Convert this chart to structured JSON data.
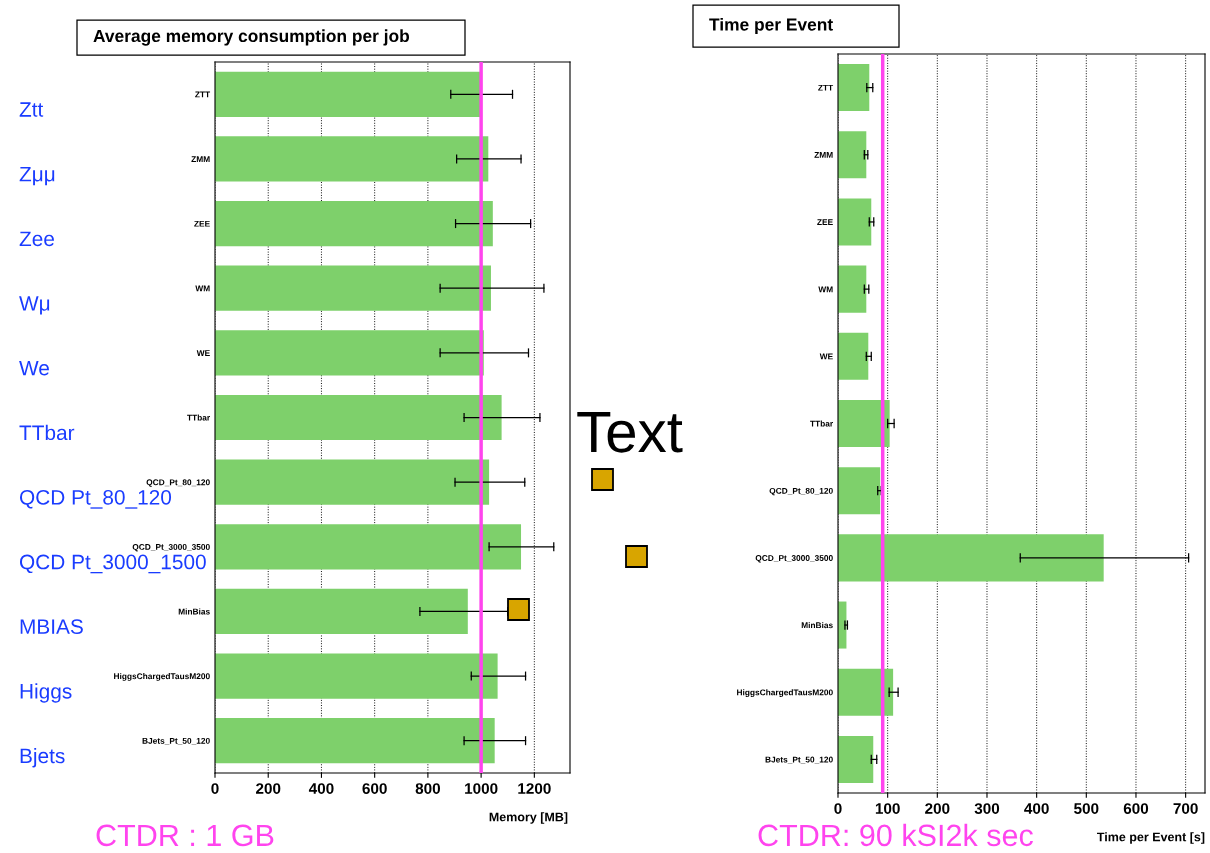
{
  "chart_data": [
    {
      "type": "bar",
      "orientation": "horizontal",
      "title": "Average memory consumption per job",
      "xlabel": "Memory [MB]",
      "categories": [
        "ZTT",
        "ZMM",
        "ZEE",
        "WM",
        "WE",
        "TTbar",
        "QCD_Pt_80_120",
        "QCD_Pt_3000_3500",
        "MinBias",
        "HiggsChargedTausM200",
        "BJets_Pt_50_120"
      ],
      "values": [
        999,
        1027,
        1044,
        1037,
        1010,
        1077,
        1030,
        1150,
        950,
        1062,
        1051
      ],
      "errors": [
        [
          886,
          1118
        ],
        [
          908,
          1150
        ],
        [
          904,
          1186
        ],
        [
          846,
          1236
        ],
        [
          846,
          1178
        ],
        [
          936,
          1221
        ],
        [
          902,
          1164
        ],
        [
          1030,
          1273
        ],
        [
          770,
          1100
        ],
        [
          963,
          1167
        ],
        [
          936,
          1167
        ]
      ],
      "color": "#7ed06b",
      "xlim": [
        0,
        1334
      ],
      "xticks": [
        0,
        200,
        400,
        600,
        800,
        1000,
        1200
      ],
      "grid": "x",
      "ref_lines": [
        {
          "axis": "x",
          "value": 1000,
          "color": "#ff44ee"
        }
      ],
      "annotations": [
        "Ztt",
        "Zμμ",
        "Zee",
        "Wμ",
        "We",
        "TTbar",
        "QCD Pt_80_120",
        "QCD Pt_3000_1500",
        "MBIAS",
        "Higgs",
        "Bjets",
        "Text",
        "CTDR : 1 GB"
      ]
    },
    {
      "type": "bar",
      "orientation": "horizontal",
      "title": "Time per Event",
      "xlabel": "Time per Event [s]",
      "categories": [
        "ZTT",
        "ZMM",
        "ZEE",
        "WM",
        "WE",
        "TTbar",
        "QCD_Pt_80_120",
        "QCD_Pt_3000_3500",
        "MinBias",
        "HiggsChargedTausM200",
        "BJets_Pt_50_120"
      ],
      "values": [
        63,
        57,
        67,
        57,
        61,
        104,
        85,
        535,
        17,
        111,
        71
      ],
      "errors": [
        [
          58,
          70
        ],
        [
          53,
          60
        ],
        [
          63,
          72
        ],
        [
          53,
          62
        ],
        [
          57,
          67
        ],
        [
          100,
          113
        ],
        [
          80,
          87
        ],
        [
          367,
          706
        ],
        [
          14,
          19
        ],
        [
          103,
          121
        ],
        [
          67,
          78
        ]
      ],
      "color": "#7ed06b",
      "xlim": [
        0,
        739
      ],
      "xticks": [
        0,
        100,
        200,
        300,
        400,
        500,
        600,
        700
      ],
      "grid": "x",
      "ref_lines": [
        {
          "axis": "x",
          "value": 90,
          "label": "CTDR: 90 kSI2k sec",
          "color": "#ff44ee"
        }
      ]
    }
  ]
}
